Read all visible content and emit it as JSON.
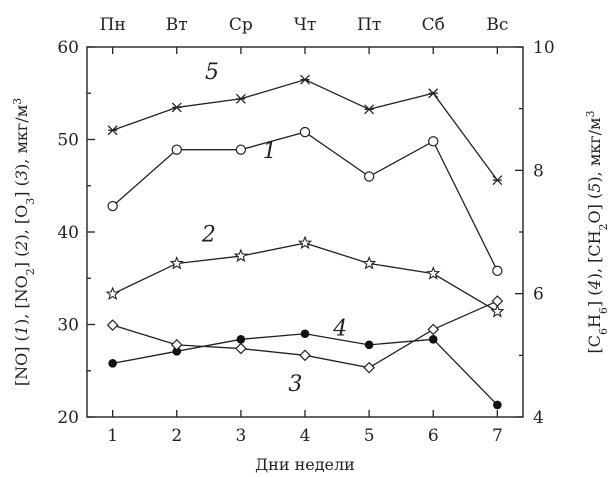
{
  "chart_data": {
    "type": "line",
    "xlabel": "Дни недели",
    "x": [
      1,
      2,
      3,
      4,
      5,
      6,
      7
    ],
    "x_ticks": [
      "1",
      "2",
      "3",
      "4",
      "5",
      "6",
      "7"
    ],
    "top_ticks": [
      "Пн",
      "Вт",
      "Ср",
      "Чт",
      "Пт",
      "Сб",
      "Вс"
    ],
    "xlim": [
      0.6,
      7.4
    ],
    "ylim_left": [
      20,
      60
    ],
    "y_ticks_left": [
      20,
      30,
      40,
      50,
      60
    ],
    "ylim_right": [
      4,
      10
    ],
    "y_ticks_right": [
      4,
      6,
      8,
      10
    ],
    "ylabel_left_parts": [
      {
        "t": "[NO] ("
      },
      {
        "t": "1",
        "it": true
      },
      {
        "t": "), [NO"
      },
      {
        "t": "2",
        "sub": true
      },
      {
        "t": "] ("
      },
      {
        "t": "2",
        "it": true
      },
      {
        "t": "), [O"
      },
      {
        "t": "3",
        "sub": true
      },
      {
        "t": "] ("
      },
      {
        "t": "3",
        "it": true
      },
      {
        "t": "), мкг/м"
      },
      {
        "t": "3",
        "sup": true
      }
    ],
    "ylabel_right_parts": [
      {
        "t": "[C"
      },
      {
        "t": "6",
        "sub": true
      },
      {
        "t": "H"
      },
      {
        "t": "6",
        "sub": true
      },
      {
        "t": "] ("
      },
      {
        "t": "4",
        "it": true
      },
      {
        "t": "), [CH"
      },
      {
        "t": "2",
        "sub": true
      },
      {
        "t": "O] ("
      },
      {
        "t": "5",
        "it": true
      },
      {
        "t": "), мкг/м"
      },
      {
        "t": "3",
        "sup": true
      }
    ],
    "grid": false,
    "series": [
      {
        "name": "1",
        "axis": "left",
        "marker": "circle-open",
        "values": [
          42.8,
          48.9,
          48.9,
          50.8,
          46.0,
          49.8,
          35.8
        ],
        "label_at": [
          3.45,
          48.0
        ]
      },
      {
        "name": "2",
        "axis": "left",
        "marker": "star-open",
        "values": [
          33.3,
          36.6,
          37.4,
          38.8,
          36.6,
          35.5,
          31.4
        ],
        "label_at": [
          2.5,
          39.0
        ]
      },
      {
        "name": "3",
        "axis": "left",
        "marker": "dot-filled",
        "values": [
          25.8,
          27.1,
          28.4,
          29.0,
          27.8,
          28.4,
          21.3
        ],
        "label_at": [
          3.85,
          22.8
        ]
      },
      {
        "name": "4",
        "axis": "right",
        "marker": "diamond-open",
        "values": [
          5.49,
          5.17,
          5.11,
          5.0,
          4.8,
          5.42,
          5.88
        ],
        "label_at": [
          4.55,
          5.32
        ]
      },
      {
        "name": "5",
        "axis": "right",
        "marker": "cross-star",
        "values": [
          8.65,
          9.02,
          9.16,
          9.47,
          8.99,
          9.25,
          7.84
        ],
        "label_at": [
          2.55,
          9.48
        ]
      }
    ]
  }
}
